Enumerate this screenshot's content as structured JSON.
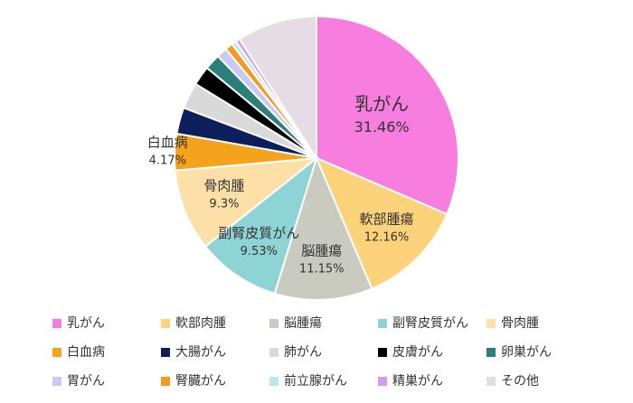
{
  "chart_data": {
    "type": "pie",
    "categories": [
      "乳がん",
      "軟部肉腫",
      "脳腫瘍",
      "副腎皮質がん",
      "骨肉腫",
      "白血病",
      "大腸がん",
      "肺がん",
      "皮膚がん",
      "卵巣がん",
      "胃がん",
      "腎臓がん",
      "前立腺がん",
      "精巣がん",
      "その他"
    ],
    "values": [
      31.46,
      12.16,
      11.15,
      9.53,
      9.3,
      4.17,
      3,
      3,
      2.2,
      1.8,
      1.2,
      0.9,
      0.5,
      0.5,
      9.13
    ],
    "value_labels": [
      "31.46%",
      "12.16%",
      "11.15%",
      "9.53%",
      "9.3%",
      "4.17%",
      null,
      null,
      null,
      null,
      null,
      null,
      null,
      null,
      null
    ],
    "slice_labels": [
      "乳がん",
      "軟部腫瘍",
      "脳腫瘍",
      "副腎皮質がん",
      "骨肉腫",
      "白血病",
      null,
      null,
      null,
      null,
      null,
      null,
      null,
      null,
      null
    ],
    "colors": [
      "#f77edf",
      "#fcd27a",
      "#c9cac0",
      "#8fd4d4",
      "#fce0a8",
      "#f5a31c",
      "#0c1f5a",
      "#d9d9d9",
      "#000000",
      "#2b7f7b",
      "#c9c9f2",
      "#f59a1e",
      "#bbe6ec",
      "#d69bf0",
      "#e6dce3"
    ],
    "legend": "bottom"
  }
}
